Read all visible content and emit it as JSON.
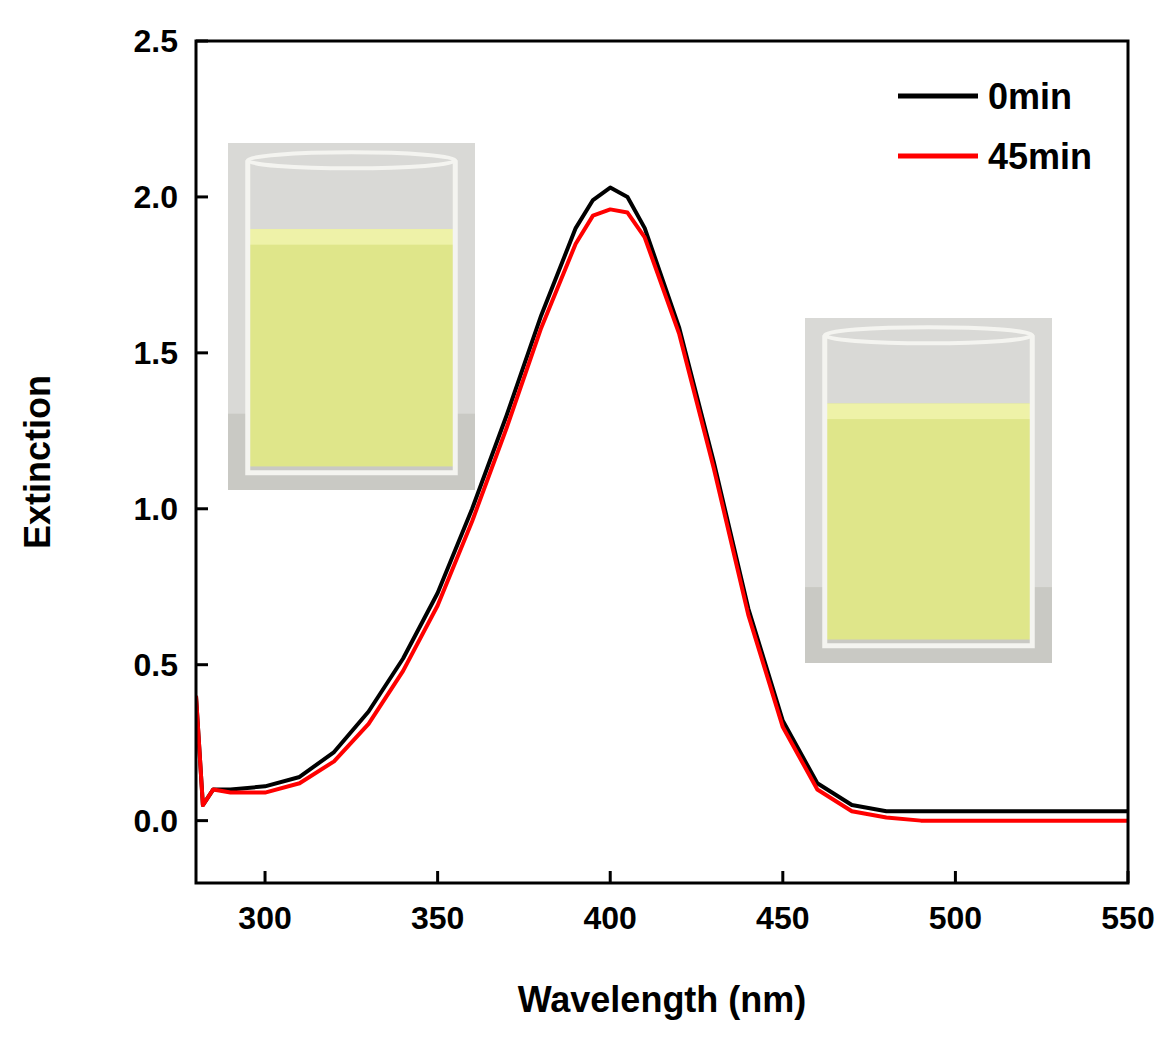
{
  "chart_data": {
    "type": "line",
    "x_label": "Wavelength (nm)",
    "y_label": "Extinction",
    "x": [
      280,
      282,
      285,
      290,
      300,
      310,
      320,
      330,
      340,
      350,
      360,
      370,
      380,
      390,
      395,
      400,
      405,
      410,
      420,
      430,
      440,
      450,
      460,
      470,
      480,
      490,
      500,
      510,
      520,
      530,
      540,
      550
    ],
    "series": [
      {
        "name": "0min",
        "color": "#000000",
        "values": [
          0.4,
          0.05,
          0.1,
          0.1,
          0.11,
          0.14,
          0.22,
          0.35,
          0.52,
          0.73,
          1.0,
          1.3,
          1.62,
          1.9,
          1.99,
          2.03,
          2.0,
          1.9,
          1.58,
          1.15,
          0.68,
          0.32,
          0.12,
          0.05,
          0.03,
          0.03,
          0.03,
          0.03,
          0.03,
          0.03,
          0.03,
          0.03
        ]
      },
      {
        "name": "45min",
        "color": "#ff0000",
        "values": [
          0.4,
          0.05,
          0.1,
          0.09,
          0.09,
          0.12,
          0.19,
          0.31,
          0.48,
          0.69,
          0.96,
          1.26,
          1.58,
          1.85,
          1.94,
          1.96,
          1.95,
          1.87,
          1.56,
          1.13,
          0.66,
          0.3,
          0.1,
          0.03,
          0.01,
          0.0,
          0.0,
          0.0,
          0.0,
          0.0,
          0.0,
          0.0
        ]
      }
    ],
    "xlim": [
      280,
      550
    ],
    "xticks": [
      300,
      350,
      400,
      450,
      500,
      550
    ],
    "ylim": [
      -0.2,
      2.5
    ],
    "yticks": [
      {
        "value": 0,
        "label": "0.0"
      },
      0.5,
      {
        "value": 1,
        "label": "1.0"
      },
      1.5,
      {
        "value": 2,
        "label": "2.0"
      },
      2.5
    ],
    "grid": false,
    "legend": "upper right"
  }
}
